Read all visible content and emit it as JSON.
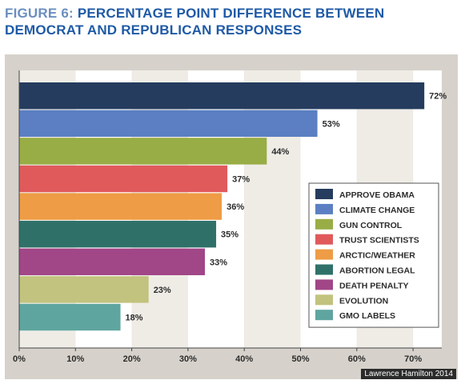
{
  "title_prefix": "FIGURE 6:",
  "title_main": "PERCENTAGE POINT DIFFERENCE BETWEEN DEMOCRAT AND REPUBLICAN RESPONSES",
  "credit": "Lawrence Hamilton 2014",
  "chart_data": {
    "type": "bar",
    "orientation": "horizontal",
    "categories": [
      "APPROVE OBAMA",
      "CLIMATE CHANGE",
      "GUN CONTROL",
      "TRUST SCIENTISTS",
      "ARCTIC/WEATHER",
      "ABORTION LEGAL",
      "DEATH PENALTY",
      "EVOLUTION",
      "GMO LABELS"
    ],
    "values": [
      72,
      53,
      44,
      37,
      36,
      35,
      33,
      23,
      18
    ],
    "value_labels": [
      "72%",
      "53%",
      "44%",
      "37%",
      "36%",
      "35%",
      "33%",
      "23%",
      "18%"
    ],
    "colors": [
      "#253c5e",
      "#5b7fc2",
      "#98ad45",
      "#e05a5c",
      "#ee9c45",
      "#2f7169",
      "#a14687",
      "#c1c37e",
      "#5fa59f"
    ],
    "xlim": [
      0,
      75
    ],
    "xticks": [
      "0%",
      "10%",
      "20%",
      "30%",
      "40%",
      "50%",
      "60%",
      "70%"
    ],
    "grid": true,
    "legend_position": "right"
  }
}
